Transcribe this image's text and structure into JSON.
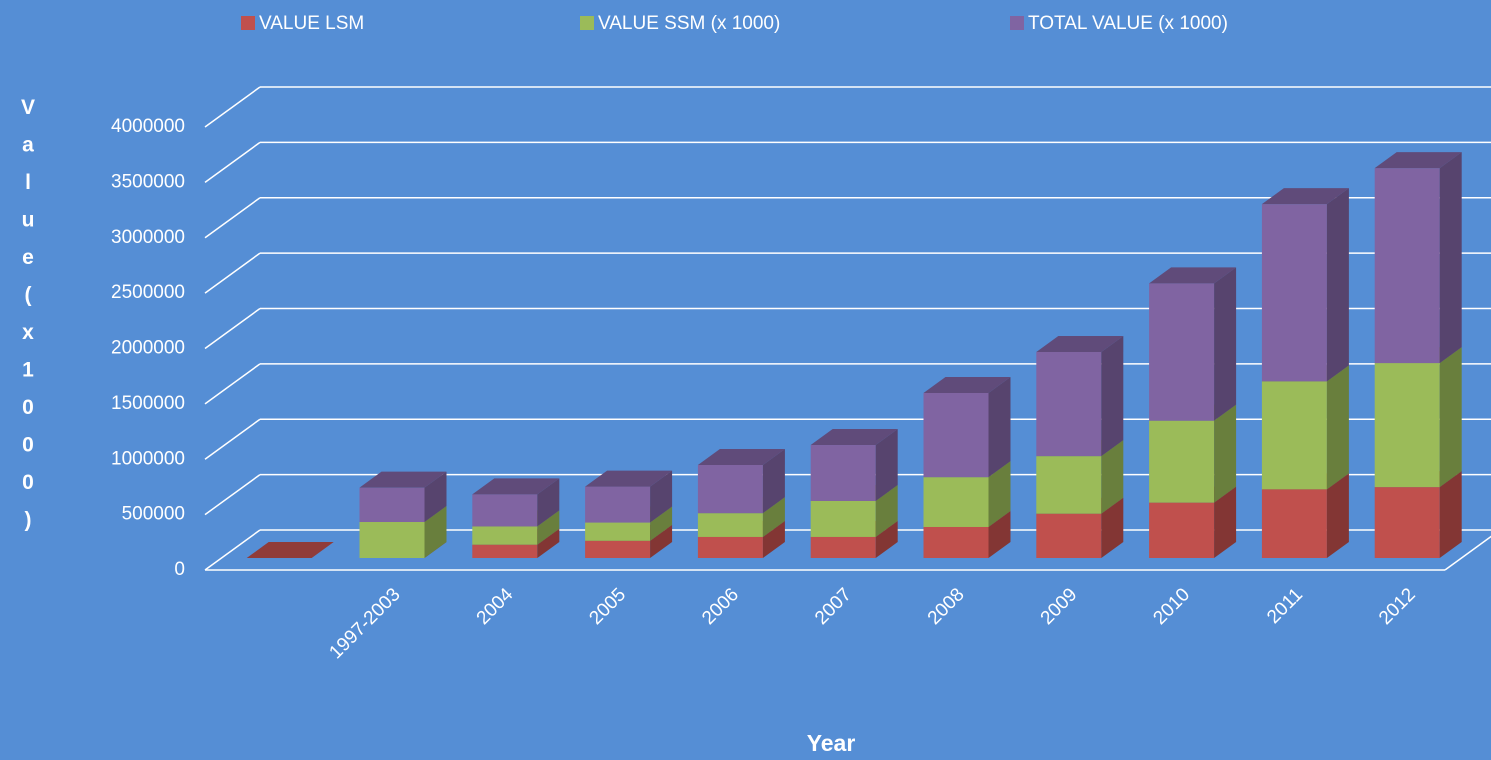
{
  "chart_data": {
    "type": "bar3d_stacked",
    "x_label": "Year",
    "y_label": "Value (x1000)",
    "categories": [
      null,
      "1997-2003",
      "2004",
      "2005",
      "2006",
      "2007",
      "2008",
      "2009",
      "2010",
      "2011",
      "2012"
    ],
    "series": [
      {
        "name": "VALUE LSM",
        "color": "#c0504d",
        "values": [
          0,
          0,
          120000,
          155000,
          190000,
          190000,
          280000,
          400000,
          500000,
          620000,
          640000
        ]
      },
      {
        "name": "VALUE SSM (x 1000)",
        "color": "#9bbb59",
        "values": [
          null,
          325000,
          165000,
          165000,
          215000,
          325000,
          450000,
          520000,
          740000,
          975000,
          1120000
        ]
      },
      {
        "name": "TOTAL VALUE (x 1000)",
        "color": "#8064a2",
        "values": [
          null,
          310000,
          290000,
          325000,
          435000,
          505000,
          760000,
          940000,
          1240000,
          1600000,
          1760000
        ]
      }
    ],
    "ylim": [
      0,
      4000000
    ],
    "yticks": [
      0,
      500000,
      1000000,
      1500000,
      2000000,
      2500000,
      3000000,
      3500000,
      4000000
    ],
    "grid": true,
    "legend": "top"
  }
}
